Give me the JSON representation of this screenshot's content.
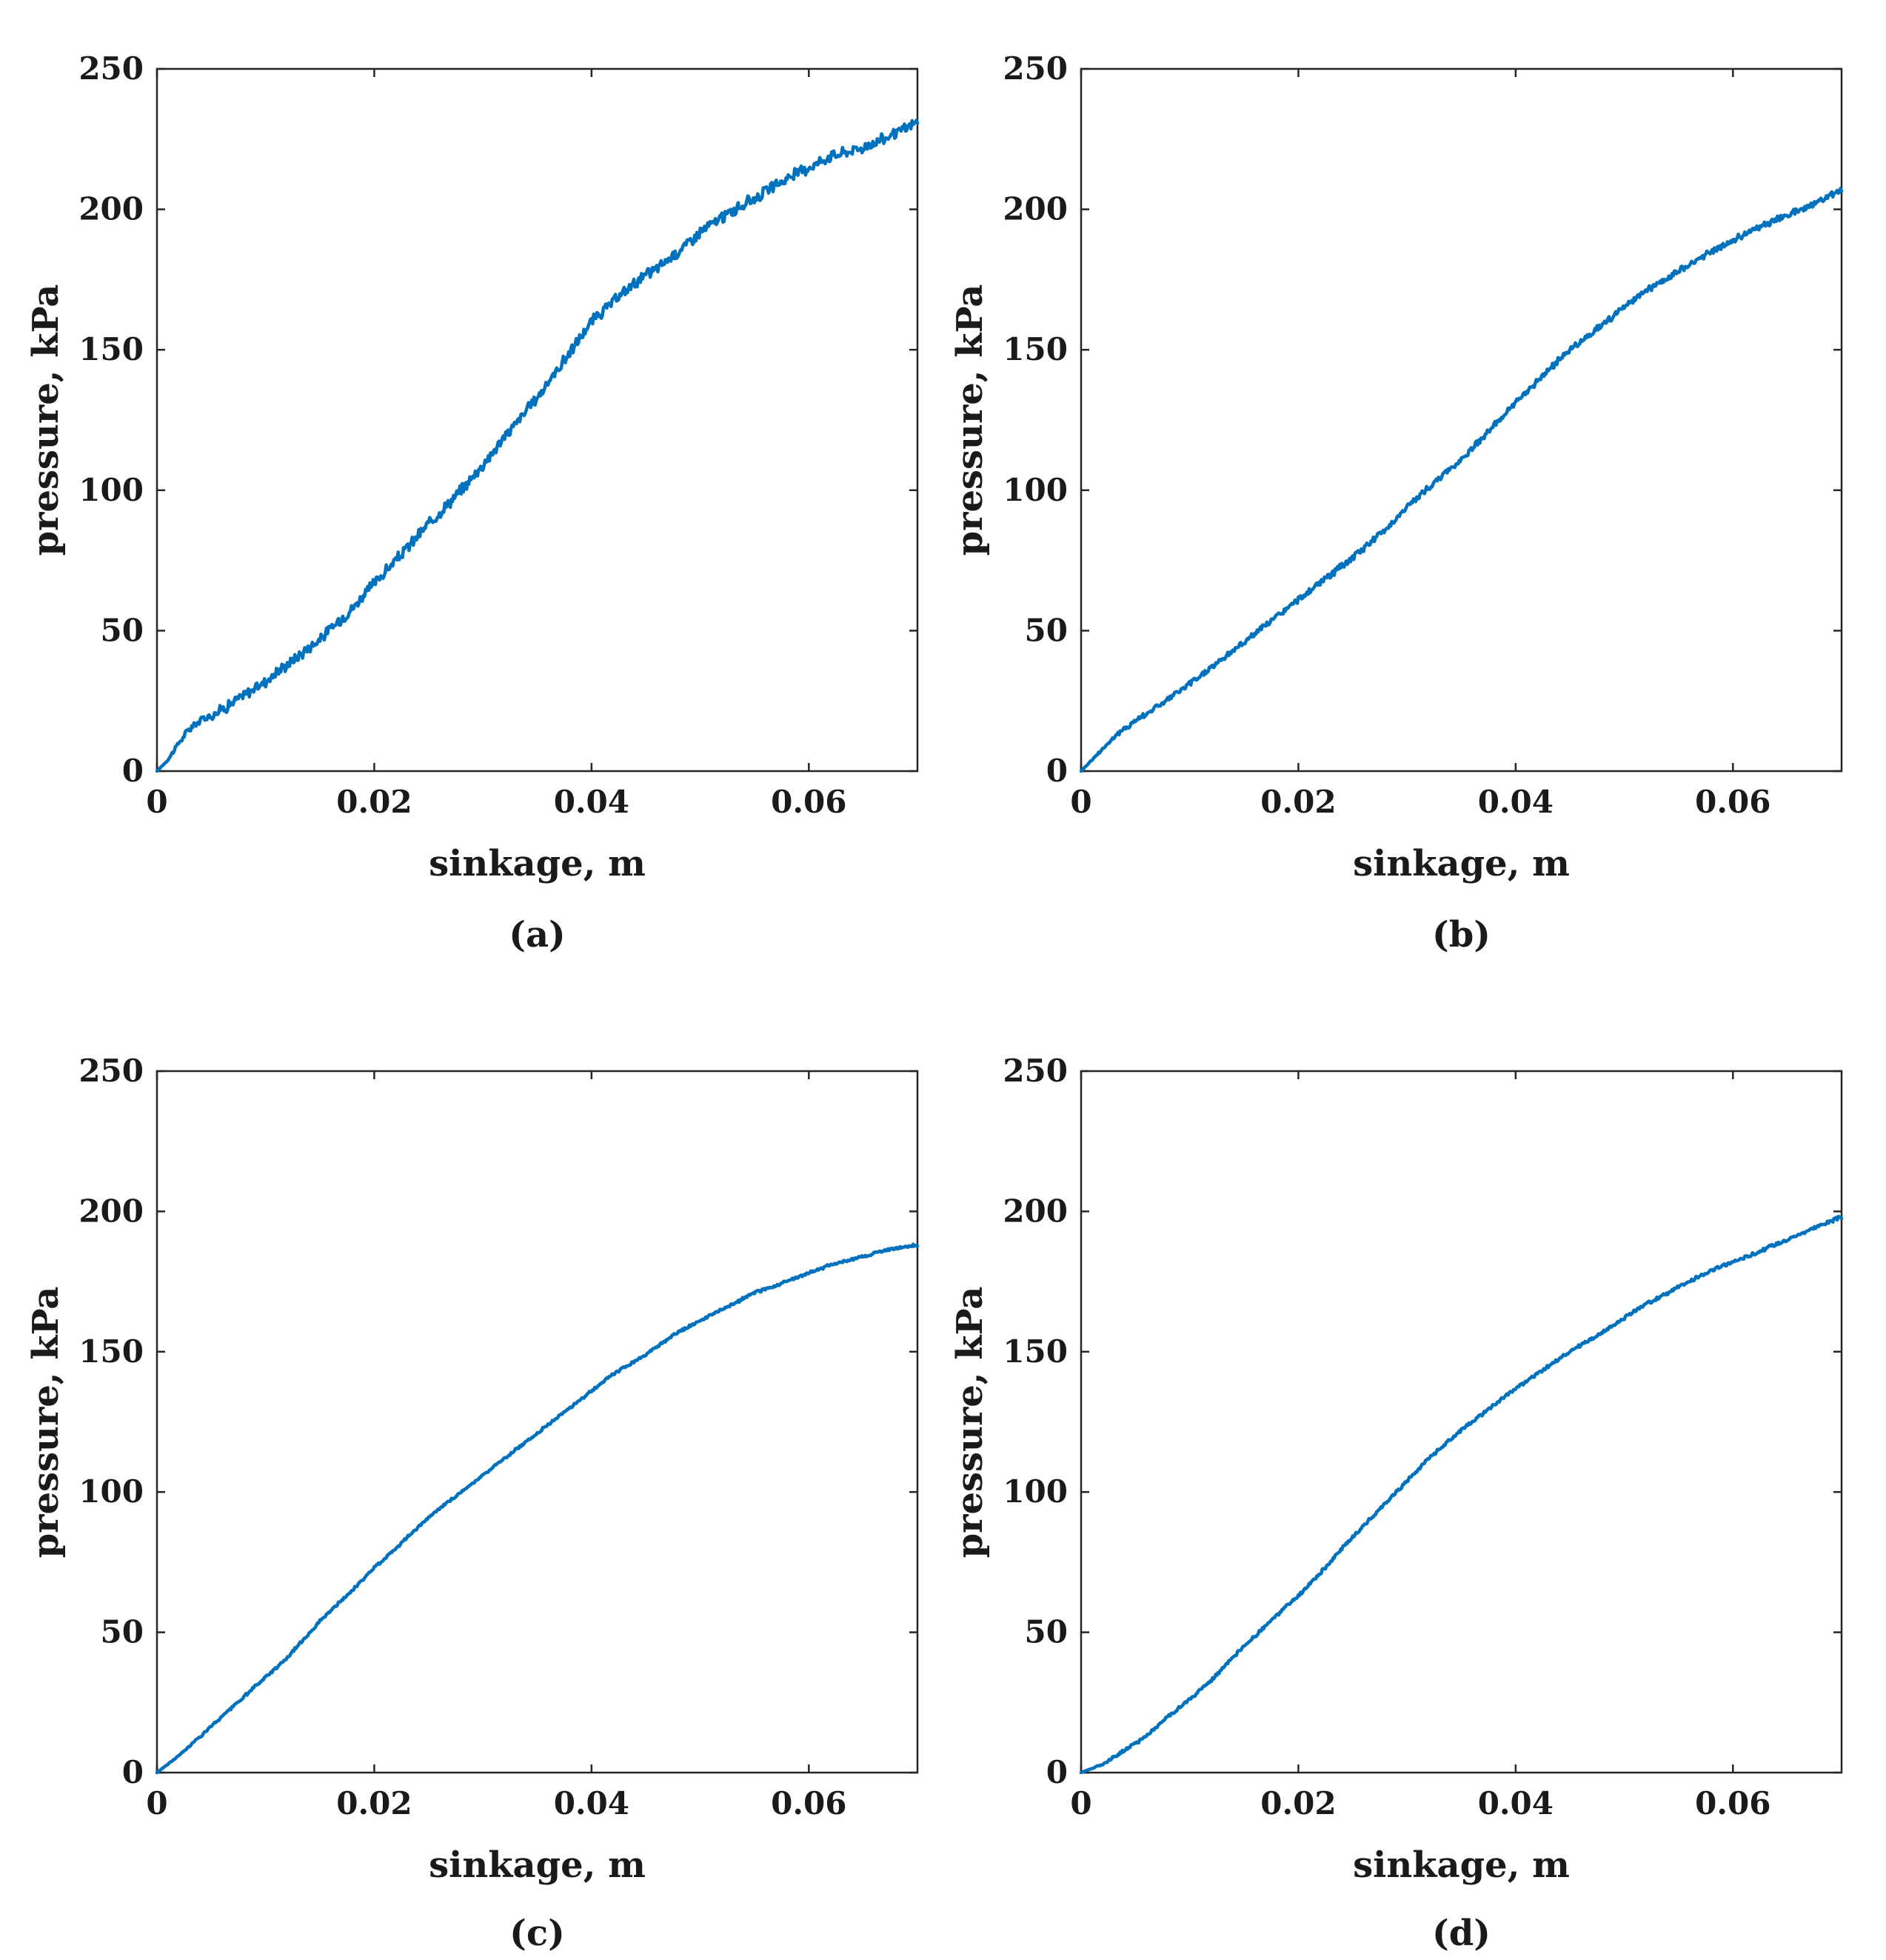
{
  "chart_data": [
    {
      "type": "line",
      "panel_label": "(a)",
      "xlabel": "sinkage, m",
      "ylabel": "pressure, kPa",
      "xlim": [
        0,
        0.07
      ],
      "ylim": [
        0,
        250
      ],
      "xticks": [
        0,
        0.02,
        0.04,
        0.06
      ],
      "xtick_labels": [
        "0",
        "0.02",
        "0.04",
        "0.06"
      ],
      "yticks": [
        0,
        50,
        100,
        150,
        200,
        250
      ],
      "ytick_labels": [
        "0",
        "50",
        "100",
        "150",
        "200",
        "250"
      ],
      "grid": false,
      "line_color": "#0072BD",
      "noise_kpa": 1.6,
      "series": [
        {
          "name": "pressure",
          "x": [
            0,
            0.001,
            0.002,
            0.003,
            0.004,
            0.005,
            0.006,
            0.008,
            0.01,
            0.012,
            0.015,
            0.018,
            0.02,
            0.022,
            0.025,
            0.028,
            0.03,
            0.032,
            0.035,
            0.038,
            0.04,
            0.042,
            0.044,
            0.046,
            0.048,
            0.05,
            0.052,
            0.055,
            0.058,
            0.06,
            0.062,
            0.065,
            0.068,
            0.07
          ],
          "y": [
            0,
            4,
            10,
            15,
            18,
            20,
            22,
            27,
            32,
            38,
            47,
            58,
            67,
            75,
            88,
            100,
            109,
            119,
            133,
            149,
            160,
            167,
            174,
            179,
            185,
            192,
            197,
            204,
            211,
            215,
            219,
            222,
            227,
            231
          ]
        }
      ]
    },
    {
      "type": "line",
      "panel_label": "(b)",
      "xlabel": "sinkage, m",
      "ylabel": "pressure, kPa",
      "xlim": [
        0,
        0.07
      ],
      "ylim": [
        0,
        250
      ],
      "xticks": [
        0,
        0.02,
        0.04,
        0.06
      ],
      "xtick_labels": [
        "0",
        "0.02",
        "0.04",
        "0.06"
      ],
      "yticks": [
        0,
        50,
        100,
        150,
        200,
        250
      ],
      "ytick_labels": [
        "0",
        "50",
        "100",
        "150",
        "200",
        "250"
      ],
      "grid": false,
      "line_color": "#0072BD",
      "noise_kpa": 0.9,
      "series": [
        {
          "name": "pressure",
          "x": [
            0,
            0.001,
            0.002,
            0.003,
            0.004,
            0.005,
            0.007,
            0.01,
            0.012,
            0.015,
            0.018,
            0.02,
            0.022,
            0.025,
            0.028,
            0.03,
            0.032,
            0.035,
            0.038,
            0.04,
            0.042,
            0.045,
            0.048,
            0.05,
            0.052,
            0.055,
            0.058,
            0.06,
            0.062,
            0.065,
            0.068,
            0.07
          ],
          "y": [
            0,
            4,
            8,
            12,
            15,
            18,
            23,
            31,
            37,
            46,
            55,
            61,
            67,
            76,
            86,
            94,
            101,
            111,
            123,
            131,
            139,
            150,
            159,
            165,
            171,
            178,
            185,
            189,
            193,
            198,
            203,
            207
          ]
        }
      ]
    },
    {
      "type": "line",
      "panel_label": "(c)",
      "xlabel": "sinkage, m",
      "ylabel": "pressure, kPa",
      "xlim": [
        0,
        0.07
      ],
      "ylim": [
        0,
        250
      ],
      "xticks": [
        0,
        0.02,
        0.04,
        0.06
      ],
      "xtick_labels": [
        "0",
        "0.02",
        "0.04",
        "0.06"
      ],
      "yticks": [
        0,
        50,
        100,
        150,
        200,
        250
      ],
      "ytick_labels": [
        "0",
        "50",
        "100",
        "150",
        "200",
        "250"
      ],
      "grid": false,
      "line_color": "#0072BD",
      "noise_kpa": 0.4,
      "series": [
        {
          "name": "pressure",
          "x": [
            0,
            0.002,
            0.004,
            0.006,
            0.008,
            0.01,
            0.012,
            0.015,
            0.018,
            0.02,
            0.022,
            0.025,
            0.028,
            0.03,
            0.032,
            0.035,
            0.038,
            0.04,
            0.042,
            0.045,
            0.048,
            0.05,
            0.052,
            0.055,
            0.058,
            0.06,
            0.062,
            0.065,
            0.068,
            0.07
          ],
          "y": [
            0,
            6,
            13,
            20,
            27,
            34,
            41,
            54,
            65,
            73,
            80,
            91,
            100,
            106,
            112,
            121,
            130,
            136,
            142,
            149,
            157,
            161,
            165,
            171,
            175,
            178,
            181,
            184,
            187,
            188
          ]
        }
      ]
    },
    {
      "type": "line",
      "panel_label": "(d)",
      "xlabel": "sinkage, m",
      "ylabel": "pressure, kPa",
      "xlim": [
        0,
        0.07
      ],
      "ylim": [
        0,
        250
      ],
      "xticks": [
        0,
        0.02,
        0.04,
        0.06
      ],
      "xtick_labels": [
        "0",
        "0.02",
        "0.04",
        "0.06"
      ],
      "yticks": [
        0,
        50,
        100,
        150,
        200,
        250
      ],
      "ytick_labels": [
        "0",
        "50",
        "100",
        "150",
        "200",
        "250"
      ],
      "grid": false,
      "line_color": "#0072BD",
      "noise_kpa": 0.5,
      "series": [
        {
          "name": "pressure",
          "x": [
            0,
            0.002,
            0.004,
            0.006,
            0.008,
            0.01,
            0.012,
            0.015,
            0.018,
            0.02,
            0.022,
            0.025,
            0.028,
            0.03,
            0.032,
            0.035,
            0.038,
            0.04,
            0.042,
            0.045,
            0.048,
            0.05,
            0.052,
            0.055,
            0.058,
            0.06,
            0.062,
            0.065,
            0.068,
            0.07
          ],
          "y": [
            0,
            3,
            8,
            13,
            20,
            26,
            33,
            45,
            56,
            63,
            71,
            84,
            96,
            104,
            112,
            122,
            131,
            137,
            142,
            150,
            157,
            162,
            167,
            173,
            179,
            182,
            185,
            190,
            195,
            198
          ]
        }
      ]
    }
  ]
}
